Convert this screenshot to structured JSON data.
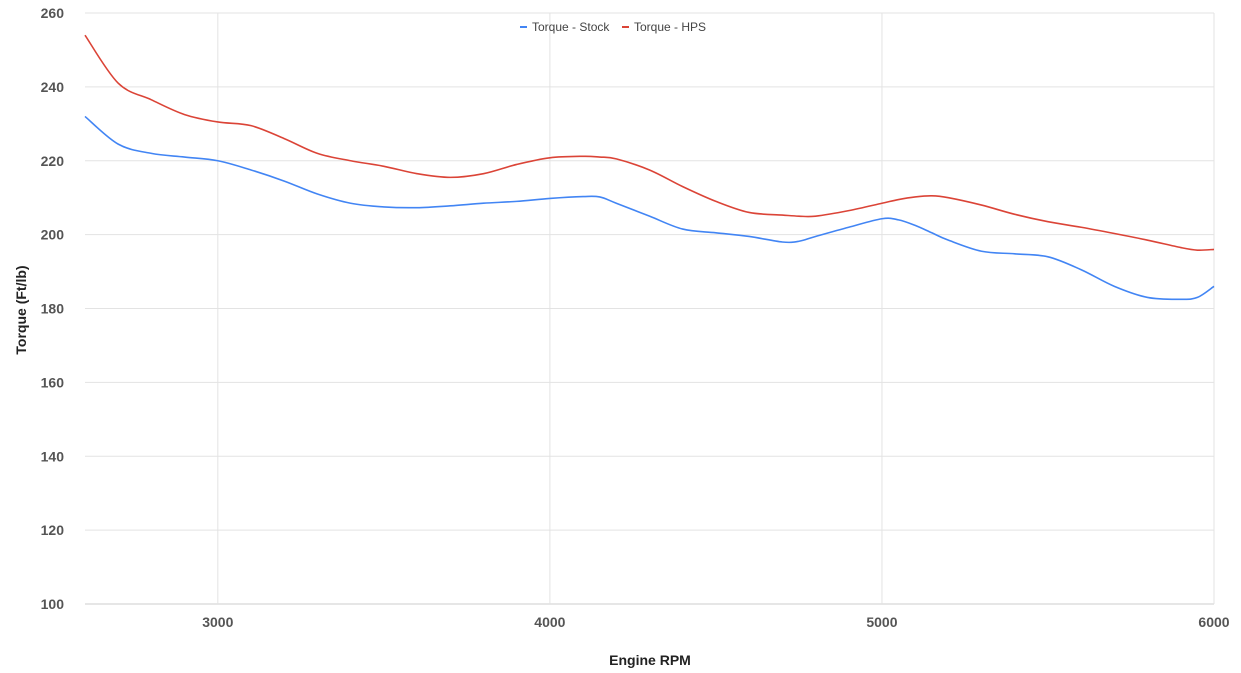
{
  "chart_data": {
    "type": "line",
    "title": "",
    "xlabel": "Engine RPM",
    "ylabel": "Torque (Ft/lb)",
    "xlim": [
      2600,
      6000
    ],
    "ylim": [
      100,
      260
    ],
    "x_ticks": [
      3000,
      4000,
      5000,
      6000
    ],
    "y_ticks": [
      100,
      120,
      140,
      160,
      180,
      200,
      220,
      240,
      260
    ],
    "grid": true,
    "legend_position": "top-center",
    "x": [
      2600,
      2700,
      2800,
      2900,
      3000,
      3100,
      3200,
      3300,
      3400,
      3500,
      3600,
      3700,
      3800,
      3900,
      4000,
      4100,
      4150,
      4200,
      4300,
      4400,
      4500,
      4600,
      4700,
      4750,
      4800,
      4900,
      5000,
      5050,
      5100,
      5150,
      5200,
      5300,
      5400,
      5500,
      5600,
      5700,
      5800,
      5900,
      5950,
      6000
    ],
    "series": [
      {
        "name": "Torque - Stock",
        "color": "#4285f4",
        "values": [
          232,
          224.5,
          222,
          221,
          220,
          217.5,
          214.5,
          211,
          208.5,
          207.5,
          207.3,
          207.8,
          208.5,
          209,
          209.8,
          210.3,
          210.2,
          208.5,
          205,
          201.5,
          200.5,
          199.5,
          198,
          198.2,
          199.5,
          202,
          204.3,
          204,
          202.5,
          200.5,
          198.5,
          195.5,
          194.8,
          194,
          190.5,
          186,
          183,
          182.5,
          183,
          186
        ]
      },
      {
        "name": "Torque - HPS",
        "color": "#db4437",
        "values": [
          254,
          241,
          236.5,
          232.5,
          230.5,
          229.5,
          226,
          222,
          220,
          218.5,
          216.5,
          215.5,
          216.5,
          219,
          220.8,
          221.2,
          221,
          220.5,
          217.5,
          213,
          209,
          206,
          205.3,
          205,
          205,
          206.5,
          208.5,
          209.5,
          210.2,
          210.5,
          210,
          208,
          205.5,
          203.5,
          202,
          200.3,
          198.5,
          196.5,
          195.8,
          196
        ]
      }
    ]
  }
}
